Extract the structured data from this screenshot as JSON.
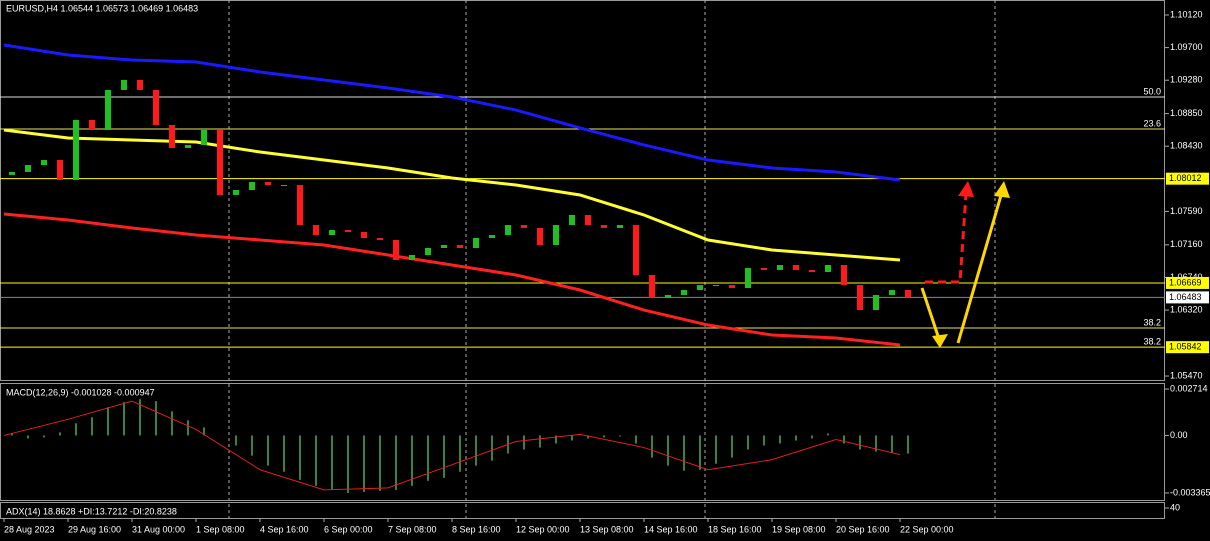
{
  "chart_data": [
    {
      "type": "candlestick",
      "title": "EURUSD,H4  1.06544 1.06573 1.06469 1.06483",
      "ylim": [
        1.05419,
        1.10313
      ],
      "yticks": [
        {
          "value": 1.1012,
          "label": "1.10120"
        },
        {
          "value": 1.097,
          "label": "1.09700"
        },
        {
          "value": 1.0928,
          "label": "1.09280"
        },
        {
          "value": 1.0885,
          "label": "1.08850"
        },
        {
          "value": 1.0843,
          "label": "1.08430"
        },
        {
          "value": 1.0759,
          "label": "1.07590"
        },
        {
          "value": 1.0716,
          "label": "1.07160"
        },
        {
          "value": 1.0674,
          "label": "1.06740"
        },
        {
          "value": 1.0632,
          "label": "1.06320"
        },
        {
          "value": 1.0547,
          "label": "1.05470"
        }
      ],
      "xticks": [
        {
          "value": 0,
          "label": "28 Aug 2023"
        },
        {
          "value": 8,
          "label": "29 Aug 16:00"
        },
        {
          "value": 16,
          "label": "31 Aug 00:00"
        },
        {
          "value": 24,
          "label": "1 Sep 08:00"
        },
        {
          "value": 32,
          "label": "4 Sep 16:00"
        },
        {
          "value": 40,
          "label": "6 Sep 00:00"
        },
        {
          "value": 48,
          "label": "7 Sep 08:00"
        },
        {
          "value": 56,
          "label": "8 Sep 16:00"
        },
        {
          "value": 64,
          "label": "12 Sep 00:00"
        },
        {
          "value": 72,
          "label": "13 Sep 08:00"
        },
        {
          "value": 80,
          "label": "14 Sep 16:00"
        },
        {
          "value": 88,
          "label": "18 Sep 16:00"
        },
        {
          "value": 96,
          "label": "19 Sep 08:00"
        },
        {
          "value": 104,
          "label": "20 Sep 16:00"
        },
        {
          "value": 112,
          "label": "22 Sep 00:00"
        }
      ],
      "up_color": "#20c020",
      "down_color": "#ff1a1a",
      "open": [
        1.0806,
        1.08098,
        1.08188,
        1.08252,
        1.07995,
        1.08768,
        1.08639,
        1.09154,
        1.09283,
        1.09154,
        1.08703,
        1.08407,
        1.08446,
        1.08639,
        1.07802,
        1.07866,
        1.07969,
        1.0793,
        1.0793,
        1.07415,
        1.07286,
        1.07351,
        1.07325,
        1.07248,
        1.07222,
        1.06964,
        1.07029,
        1.07119,
        1.07158,
        1.07119,
        1.07248,
        1.07286,
        1.07415,
        1.07377,
        1.07158,
        1.07415,
        1.07544,
        1.07415,
        1.07377,
        1.07415,
        1.06771,
        1.06475,
        1.06514,
        1.06578,
        1.06642,
        1.06642,
        1.06604,
        1.06861,
        1.06836,
        1.069,
        1.06836,
        1.0681,
        1.069,
        1.06642,
        1.0632,
        1.06514,
        1.06578
      ],
      "close": [
        1.08098,
        1.08188,
        1.08252,
        1.07995,
        1.08768,
        1.08639,
        1.09154,
        1.09283,
        1.09154,
        1.08703,
        1.08407,
        1.08446,
        1.08639,
        1.07802,
        1.07866,
        1.07969,
        1.0793,
        1.0793,
        1.07415,
        1.07286,
        1.07351,
        1.07325,
        1.07248,
        1.07222,
        1.06964,
        1.07029,
        1.07119,
        1.07158,
        1.07119,
        1.07248,
        1.07286,
        1.07415,
        1.07377,
        1.07158,
        1.07415,
        1.07544,
        1.07415,
        1.07377,
        1.07415,
        1.06771,
        1.06475,
        1.06514,
        1.06578,
        1.06642,
        1.06642,
        1.06604,
        1.06861,
        1.06836,
        1.069,
        1.06836,
        1.0681,
        1.069,
        1.06642,
        1.0632,
        1.06514,
        1.06578,
        1.06483
      ],
      "moving_averages": [
        {
          "color": "#1a1aff",
          "values": [
            1.09734,
            1.09605,
            1.0954,
            1.09515,
            1.09386,
            1.09283,
            1.0918,
            1.09064,
            1.08896,
            1.08665,
            1.08446,
            1.08252,
            1.08149,
            1.08098,
            1.07995
          ]
        },
        {
          "color": "#ffff33",
          "values": [
            1.08639,
            1.08536,
            1.0851,
            1.08484,
            1.08355,
            1.08252,
            1.08149,
            1.08021,
            1.0793,
            1.07802,
            1.07544,
            1.07222,
            1.07093,
            1.07029,
            1.06964
          ]
        },
        {
          "color": "#ff2020",
          "values": [
            1.07557,
            1.0748,
            1.07377,
            1.07286,
            1.07222,
            1.07158,
            1.07029,
            1.069,
            1.06771,
            1.06578,
            1.0632,
            1.06127,
            1.05998,
            1.0596,
            1.0587
          ]
        }
      ],
      "levels": [
        {
          "value": 1.09064,
          "label": "50.0",
          "color": "#dddddd"
        },
        {
          "value": 1.08652,
          "label": "23.6",
          "color": "#e6e65a"
        },
        {
          "value": 1.08012,
          "color": "#ffff00"
        },
        {
          "value": 1.06669,
          "color": "#ffff00"
        },
        {
          "value": 1.06483,
          "color": "#888888"
        },
        {
          "value": 1.06089,
          "label": "38.2",
          "color": "#e6e65a"
        },
        {
          "value": 1.05842,
          "label": "38.2",
          "color": "#ffff00"
        }
      ],
      "price_tags": [
        {
          "value": 1.08012,
          "color": "#ffff00"
        },
        {
          "value": 1.06669,
          "color": "#ffff00"
        },
        {
          "value": 1.06483,
          "color": "#ffffff"
        },
        {
          "value": 1.05842,
          "color": "#ffff00"
        }
      ]
    },
    {
      "type": "macd",
      "title": "MACD(12,26,9) -0.001028 -0.000947",
      "ylim": [
        -0.003776,
        0.003009
      ],
      "yticks": [
        0.002714,
        {
          "value": 0,
          "label": "0.00"
        },
        -0.003365
      ],
      "histogram": {
        "color": "#4caf50",
        "values": [
          0.000118,
          -0.000177,
          -0.000118,
          0.000177,
          0.000708,
          0.001062,
          0.001652,
          0.001947,
          0.002124,
          0.002006,
          0.001416,
          0.000885,
          0.000472,
          0,
          -0.00059,
          -0.00118,
          -0.00177,
          -0.002124,
          -0.002596,
          -0.00295,
          -0.003186,
          -0.003363,
          -0.003304,
          -0.003245,
          -0.003186,
          -0.00295,
          -0.002655,
          -0.002478,
          -0.002124,
          -0.00177,
          -0.001475,
          -0.001062,
          -0.000826,
          -0.000708,
          -0.000472,
          -0.000295,
          -0.000177,
          -0.000118,
          -5.9e-05,
          -0.000472,
          -0.001298,
          -0.00177,
          -0.002065,
          -0.002006,
          -0.001652,
          -0.001298,
          -0.000826,
          -0.00059,
          -0.000472,
          -0.000295,
          -0.000177,
          0.000118,
          -0.000472,
          -0.000826,
          -0.000944,
          -0.001003,
          -0.001062
        ]
      },
      "signal": {
        "color": "#e02020",
        "values": [
          0,
          0.000944,
          0.002006,
          0.000354,
          -0.002006,
          -0.003186,
          -0.003068,
          -0.001711,
          -0.000354,
          5.9e-05,
          -0.000708,
          -0.002006,
          -0.001416,
          -0.000236,
          -0.001121
        ]
      }
    },
    {
      "type": "adx",
      "title": "ADX(14) 18.8628 +DI:13.7212 -DI:20.8238",
      "ylim": [
        0,
        60
      ],
      "yticks": [
        40
      ]
    }
  ]
}
